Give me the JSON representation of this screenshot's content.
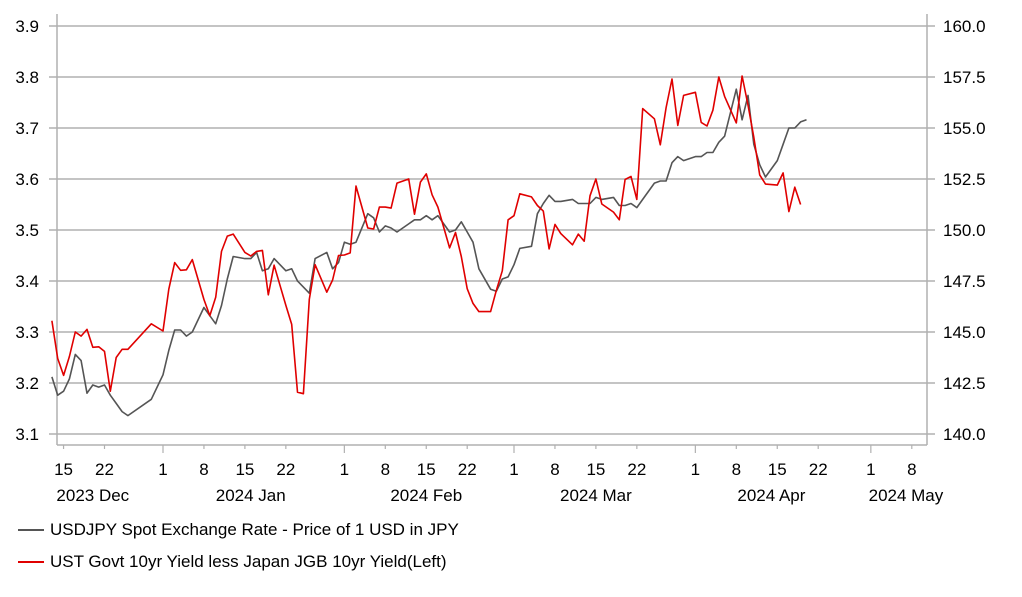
{
  "chart_data": {
    "type": "line",
    "title": "",
    "x_axis": {
      "day_ticks": [
        {
          "day": -17,
          "label": "15"
        },
        {
          "day": -10,
          "label": "22"
        },
        {
          "day": 0,
          "label": "1"
        },
        {
          "day": 7,
          "label": "8"
        },
        {
          "day": 14,
          "label": "15"
        },
        {
          "day": 21,
          "label": "22"
        },
        {
          "day": 31,
          "label": "1"
        },
        {
          "day": 38,
          "label": "8"
        },
        {
          "day": 45,
          "label": "15"
        },
        {
          "day": 52,
          "label": "22"
        },
        {
          "day": 60,
          "label": "1"
        },
        {
          "day": 67,
          "label": "8"
        },
        {
          "day": 74,
          "label": "15"
        },
        {
          "day": 81,
          "label": "22"
        },
        {
          "day": 91,
          "label": "1"
        },
        {
          "day": 98,
          "label": "8"
        },
        {
          "day": 105,
          "label": "15"
        },
        {
          "day": 112,
          "label": "22"
        },
        {
          "day": 121,
          "label": "1"
        },
        {
          "day": 128,
          "label": "8"
        }
      ],
      "month_labels": [
        {
          "day": -12,
          "label": "2023 Dec"
        },
        {
          "day": 15,
          "label": "2024 Jan"
        },
        {
          "day": 45,
          "label": "2024 Feb"
        },
        {
          "day": 74,
          "label": "2024 Mar"
        },
        {
          "day": 104,
          "label": "2024 Apr"
        },
        {
          "day": 127,
          "label": "2024 May"
        }
      ],
      "range_days": [
        -20,
        133
      ]
    },
    "left_axis": {
      "ylim": [
        3.1,
        3.9
      ],
      "ticks": [
        "3.1",
        "3.2",
        "3.3",
        "3.4",
        "3.5",
        "3.6",
        "3.7",
        "3.8",
        "3.9"
      ]
    },
    "right_axis": {
      "ylim": [
        140.0,
        160.0
      ],
      "ticks": [
        "140.0",
        "142.5",
        "145.0",
        "147.5",
        "150.0",
        "152.5",
        "155.0",
        "157.5",
        "160.0"
      ]
    },
    "grid": true,
    "legend_position": "bottom-left",
    "series": [
      {
        "name": "USDJPY Spot Exchange Rate - Price of 1 USD in JPY",
        "axis": "right",
        "color": "#555555",
        "points": [
          [
            -19,
            142.8
          ],
          [
            -18,
            141.9
          ],
          [
            -17,
            142.1
          ],
          [
            -16,
            142.7
          ],
          [
            -15,
            143.9
          ],
          [
            -14,
            143.6
          ],
          [
            -13,
            142.0
          ],
          [
            -12,
            142.4
          ],
          [
            -11,
            142.3
          ],
          [
            -10,
            142.4
          ],
          [
            -9,
            141.9
          ],
          [
            -8,
            141.5
          ],
          [
            -7,
            141.1
          ],
          [
            -6,
            140.9
          ],
          [
            -2,
            141.7
          ],
          [
            0,
            142.9
          ],
          [
            1,
            144.1
          ],
          [
            2,
            145.1
          ],
          [
            3,
            145.1
          ],
          [
            4,
            144.8
          ],
          [
            5,
            145.0
          ],
          [
            7,
            146.2
          ],
          [
            8,
            145.8
          ],
          [
            9,
            145.4
          ],
          [
            10,
            146.3
          ],
          [
            11,
            147.6
          ],
          [
            12,
            148.7
          ],
          [
            14,
            148.6
          ],
          [
            15,
            148.6
          ],
          [
            16,
            148.9
          ],
          [
            17,
            148.0
          ],
          [
            18,
            148.1
          ],
          [
            19,
            148.6
          ],
          [
            21,
            148.0
          ],
          [
            22,
            148.1
          ],
          [
            23,
            147.5
          ],
          [
            24,
            147.2
          ],
          [
            25,
            146.9
          ],
          [
            26,
            148.6
          ],
          [
            28,
            148.9
          ],
          [
            29,
            148.1
          ],
          [
            30,
            148.4
          ],
          [
            31,
            149.4
          ],
          [
            32,
            149.3
          ],
          [
            33,
            149.4
          ],
          [
            35,
            150.8
          ],
          [
            36,
            150.6
          ],
          [
            37,
            149.9
          ],
          [
            38,
            150.2
          ],
          [
            39,
            150.1
          ],
          [
            40,
            149.9
          ],
          [
            42,
            150.3
          ],
          [
            43,
            150.5
          ],
          [
            44,
            150.5
          ],
          [
            45,
            150.7
          ],
          [
            46,
            150.5
          ],
          [
            47,
            150.7
          ],
          [
            49,
            149.9
          ],
          [
            50,
            150.0
          ],
          [
            51,
            150.4
          ],
          [
            52,
            149.9
          ],
          [
            53,
            149.4
          ],
          [
            54,
            148.1
          ],
          [
            56,
            147.1
          ],
          [
            57,
            147.0
          ],
          [
            58,
            147.6
          ],
          [
            59,
            147.7
          ],
          [
            60,
            148.3
          ],
          [
            61,
            149.1
          ],
          [
            63,
            149.2
          ],
          [
            64,
            150.8
          ],
          [
            65,
            151.3
          ],
          [
            66,
            151.7
          ],
          [
            67,
            151.4
          ],
          [
            68,
            151.4
          ],
          [
            70,
            151.5
          ],
          [
            71,
            151.3
          ],
          [
            72,
            151.3
          ],
          [
            73,
            151.3
          ],
          [
            74,
            151.6
          ],
          [
            75,
            151.5
          ],
          [
            77,
            151.6
          ],
          [
            78,
            151.2
          ],
          [
            79,
            151.2
          ],
          [
            80,
            151.3
          ],
          [
            81,
            151.1
          ],
          [
            82,
            151.5
          ],
          [
            84,
            152.3
          ],
          [
            85,
            152.4
          ],
          [
            86,
            152.4
          ],
          [
            87,
            153.3
          ],
          [
            88,
            153.6
          ],
          [
            89,
            153.4
          ],
          [
            91,
            153.6
          ],
          [
            92,
            153.6
          ],
          [
            93,
            153.8
          ],
          [
            94,
            153.8
          ],
          [
            95,
            154.3
          ],
          [
            96,
            154.6
          ],
          [
            98,
            156.9
          ],
          [
            99,
            155.4
          ],
          [
            100,
            156.6
          ],
          [
            101,
            154.2
          ],
          [
            102,
            153.2
          ],
          [
            103,
            152.6
          ],
          [
            105,
            153.4
          ],
          [
            106,
            154.2
          ],
          [
            107,
            155.0
          ],
          [
            108,
            155.0
          ],
          [
            109,
            155.3
          ],
          [
            110,
            155.4
          ]
        ]
      },
      {
        "name": "UST Govt 10yr Yield less Japan JGB 10yr Yield(Left)",
        "axis": "left",
        "color": "#e00000",
        "points": [
          [
            -19,
            3.322
          ],
          [
            -18,
            3.248
          ],
          [
            -17,
            3.215
          ],
          [
            -16,
            3.252
          ],
          [
            -15,
            3.3
          ],
          [
            -14,
            3.292
          ],
          [
            -13,
            3.305
          ],
          [
            -12,
            3.27
          ],
          [
            -11,
            3.271
          ],
          [
            -10,
            3.262
          ],
          [
            -9,
            3.184
          ],
          [
            -8,
            3.25
          ],
          [
            -7,
            3.266
          ],
          [
            -6,
            3.266
          ],
          [
            -2,
            3.316
          ],
          [
            0,
            3.302
          ],
          [
            1,
            3.384
          ],
          [
            2,
            3.436
          ],
          [
            3,
            3.421
          ],
          [
            4,
            3.422
          ],
          [
            5,
            3.442
          ],
          [
            7,
            3.364
          ],
          [
            8,
            3.332
          ],
          [
            9,
            3.368
          ],
          [
            10,
            3.458
          ],
          [
            11,
            3.488
          ],
          [
            12,
            3.492
          ],
          [
            14,
            3.456
          ],
          [
            15,
            3.449
          ],
          [
            16,
            3.458
          ],
          [
            17,
            3.46
          ],
          [
            18,
            3.373
          ],
          [
            19,
            3.431
          ],
          [
            21,
            3.352
          ],
          [
            22,
            3.315
          ],
          [
            23,
            3.182
          ],
          [
            24,
            3.179
          ],
          [
            25,
            3.364
          ],
          [
            26,
            3.432
          ],
          [
            28,
            3.378
          ],
          [
            29,
            3.402
          ],
          [
            30,
            3.45
          ],
          [
            31,
            3.451
          ],
          [
            32,
            3.455
          ],
          [
            33,
            3.586
          ],
          [
            35,
            3.504
          ],
          [
            36,
            3.502
          ],
          [
            37,
            3.545
          ],
          [
            38,
            3.545
          ],
          [
            39,
            3.543
          ],
          [
            40,
            3.592
          ],
          [
            42,
            3.6
          ],
          [
            43,
            3.531
          ],
          [
            44,
            3.594
          ],
          [
            45,
            3.61
          ],
          [
            46,
            3.569
          ],
          [
            47,
            3.545
          ],
          [
            49,
            3.465
          ],
          [
            50,
            3.495
          ],
          [
            51,
            3.448
          ],
          [
            52,
            3.385
          ],
          [
            53,
            3.356
          ],
          [
            54,
            3.34
          ],
          [
            56,
            3.34
          ],
          [
            57,
            3.382
          ],
          [
            58,
            3.42
          ],
          [
            59,
            3.52
          ],
          [
            60,
            3.528
          ],
          [
            61,
            3.571
          ],
          [
            63,
            3.565
          ],
          [
            64,
            3.548
          ],
          [
            65,
            3.537
          ],
          [
            66,
            3.463
          ],
          [
            67,
            3.511
          ],
          [
            68,
            3.493
          ],
          [
            70,
            3.471
          ],
          [
            71,
            3.492
          ],
          [
            72,
            3.478
          ],
          [
            73,
            3.567
          ],
          [
            74,
            3.6
          ],
          [
            75,
            3.551
          ],
          [
            77,
            3.535
          ],
          [
            78,
            3.52
          ],
          [
            79,
            3.599
          ],
          [
            80,
            3.605
          ],
          [
            81,
            3.56
          ],
          [
            82,
            3.738
          ],
          [
            84,
            3.718
          ],
          [
            85,
            3.667
          ],
          [
            86,
            3.74
          ],
          [
            87,
            3.796
          ],
          [
            88,
            3.705
          ],
          [
            89,
            3.764
          ],
          [
            91,
            3.77
          ],
          [
            92,
            3.711
          ],
          [
            93,
            3.704
          ],
          [
            94,
            3.735
          ],
          [
            95,
            3.8
          ],
          [
            96,
            3.762
          ],
          [
            98,
            3.71
          ],
          [
            99,
            3.802
          ],
          [
            100,
            3.745
          ],
          [
            101,
            3.682
          ],
          [
            102,
            3.608
          ],
          [
            103,
            3.59
          ],
          [
            105,
            3.588
          ],
          [
            106,
            3.612
          ],
          [
            107,
            3.536
          ],
          [
            108,
            3.584
          ],
          [
            109,
            3.55
          ]
        ]
      }
    ]
  },
  "legend": {
    "items": [
      {
        "label": "USDJPY Spot Exchange Rate - Price of 1 USD in JPY",
        "color": "#555555"
      },
      {
        "label": "UST Govt 10yr Yield less Japan JGB 10yr Yield(Left)",
        "color": "#e00000"
      }
    ]
  }
}
